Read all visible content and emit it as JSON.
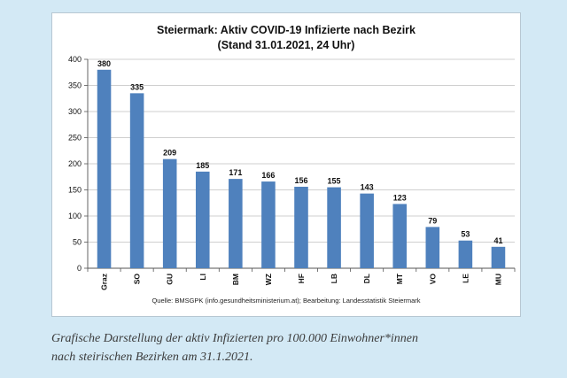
{
  "chart_data": {
    "type": "bar",
    "title": "Steiermark: Aktiv COVID-19 Infizierte nach Bezirk",
    "subtitle": "(Stand 31.01.2021, 24 Uhr)",
    "categories": [
      "Graz",
      "SO",
      "GU",
      "LI",
      "BM",
      "WZ",
      "HF",
      "LB",
      "DL",
      "MT",
      "VO",
      "LE",
      "MU"
    ],
    "values": [
      380,
      335,
      209,
      185,
      171,
      166,
      156,
      155,
      143,
      123,
      79,
      53,
      41
    ],
    "ylim": [
      0,
      400
    ],
    "yticks": [
      0,
      50,
      100,
      150,
      200,
      250,
      300,
      350,
      400
    ],
    "xlabel": "",
    "ylabel": "",
    "grid": true,
    "bar_color": "#4f81bd",
    "data_labels": true
  },
  "source": "Quelle: BMSGPK (info.gesundheitsministerium.at); Bearbeitung: Landesstatistik Steiermark",
  "caption": {
    "line1": "Grafische Darstellung der aktiv Infizierten pro 100.000 Einwohner*innen",
    "line2": "nach steirischen Bezirken am 31.1.2021."
  },
  "colors": {
    "background": "#d3e9f5",
    "bar": "#4f81bd",
    "grid": "#a0a0a0"
  }
}
